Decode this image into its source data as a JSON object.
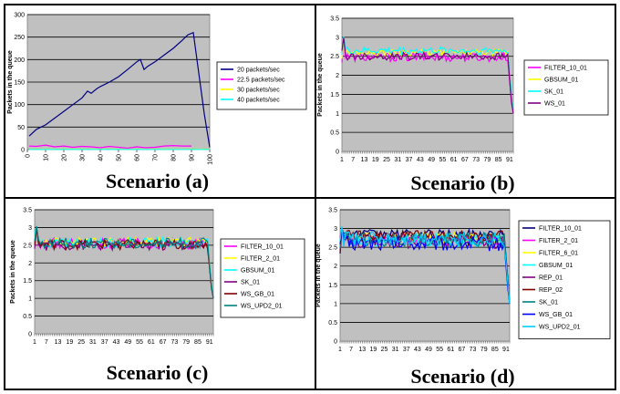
{
  "panels": [
    {
      "caption": "Scenario (a)",
      "chart": {
        "type": "line",
        "ylabel": "Packets in the queue",
        "ylim": [
          0,
          300
        ],
        "yticks": [
          0,
          50,
          100,
          150,
          200,
          250,
          300
        ],
        "xlim": [
          0,
          100
        ],
        "xticks": [
          0,
          10,
          20,
          30,
          40,
          50,
          60,
          70,
          80,
          90,
          100
        ],
        "grid": "horizontal",
        "legend": "right",
        "series": [
          {
            "name": "20 packets/sec",
            "color": "#000080",
            "x": [
              1,
              5,
              10,
              15,
              20,
              25,
              30,
              33,
              35,
              38,
              40,
              45,
              50,
              55,
              60,
              62,
              64,
              66,
              70,
              75,
              80,
              85,
              88,
              91,
              94,
              97,
              100
            ],
            "y": [
              30,
              45,
              55,
              70,
              85,
              100,
              115,
              130,
              125,
              135,
              140,
              150,
              162,
              178,
              195,
              200,
              178,
              185,
              195,
              210,
              225,
              243,
              255,
              260,
              170,
              80,
              5
            ]
          },
          {
            "name": "22.5 packets/sec",
            "color": "#FF00FF",
            "x": [
              1,
              5,
              10,
              15,
              20,
              25,
              30,
              35,
              40,
              45,
              50,
              55,
              60,
              65,
              70,
              75,
              80,
              85,
              90
            ],
            "y": [
              8,
              7,
              10,
              6,
              8,
              5,
              7,
              6,
              4,
              7,
              5,
              3,
              6,
              4,
              5,
              8,
              9,
              8,
              8
            ]
          },
          {
            "name": "30 packets/sec",
            "color": "#FFFF00",
            "x": [
              1,
              100
            ],
            "y": [
              1,
              1
            ]
          },
          {
            "name": "40 packets/sec",
            "color": "#00FFFF",
            "x": [
              1,
              100
            ],
            "y": [
              0.5,
              0.5
            ]
          }
        ]
      }
    },
    {
      "caption": "Scenario (b)",
      "chart": {
        "type": "line",
        "ylabel": "Packets in the queue",
        "ylim": [
          0,
          3.5
        ],
        "yticks": [
          "0",
          "0.5",
          "1",
          "1.5",
          "2",
          "2.5",
          "3",
          "3.5"
        ],
        "xticks": [
          "1",
          "7",
          "13",
          "19",
          "25",
          "31",
          "37",
          "43",
          "49",
          "55",
          "61",
          "67",
          "73",
          "79",
          "85",
          "91"
        ],
        "npoints": 93,
        "grid": "horizontal",
        "legend": "right",
        "series": [
          {
            "name": "FILTER_10_01",
            "color": "#FF00FF",
            "base": 2.48,
            "amp": 0.12
          },
          {
            "name": "GBSUM_01",
            "color": "#FFFF00",
            "base": 2.6,
            "amp": 0.08
          },
          {
            "name": "SK_01",
            "color": "#00FFFF",
            "base": 2.65,
            "amp": 0.1
          },
          {
            "name": "WS_01",
            "color": "#800080",
            "base": 2.5,
            "amp": 0.1
          }
        ]
      }
    },
    {
      "caption": "Scenario (c)",
      "chart": {
        "type": "line",
        "ylabel": "Packets in the queue",
        "ylim": [
          0,
          3.5
        ],
        "yticks": [
          "0",
          "0.5",
          "1",
          "1.5",
          "2",
          "2.5",
          "3",
          "3.5"
        ],
        "xticks": [
          "1",
          "7",
          "13",
          "19",
          "25",
          "31",
          "37",
          "43",
          "49",
          "55",
          "61",
          "67",
          "73",
          "79",
          "85",
          "91"
        ],
        "npoints": 93,
        "grid": "horizontal",
        "legend": "right",
        "series": [
          {
            "name": "FILTER_10_01",
            "color": "#FF00FF",
            "base": 2.55,
            "amp": 0.15
          },
          {
            "name": "FILTER_2_01",
            "color": "#FFFF00",
            "base": 2.6,
            "amp": 0.12
          },
          {
            "name": "GBSUM_01",
            "color": "#00FFFF",
            "base": 2.58,
            "amp": 0.14
          },
          {
            "name": "SK_01",
            "color": "#800080",
            "base": 2.5,
            "amp": 0.15
          },
          {
            "name": "WS_GB_01",
            "color": "#800000",
            "base": 2.52,
            "amp": 0.14
          },
          {
            "name": "WS_UPD2_01",
            "color": "#008080",
            "base": 2.56,
            "amp": 0.15
          }
        ]
      }
    },
    {
      "caption": "Scenario (d)",
      "chart": {
        "type": "line",
        "ylabel": "Packets in the queue",
        "ylim": [
          0,
          3.5
        ],
        "yticks": [
          "0",
          "0.5",
          "1",
          "1.5",
          "2",
          "2.5",
          "3",
          "3.5"
        ],
        "xticks": [
          "1",
          "7",
          "13",
          "19",
          "25",
          "31",
          "37",
          "43",
          "49",
          "55",
          "61",
          "67",
          "73",
          "79",
          "85",
          "91"
        ],
        "npoints": 93,
        "grid": "horizontal",
        "legend": "right",
        "series": [
          {
            "name": "FILTER_10_01",
            "color": "#000080",
            "base": 2.85,
            "amp": 0.12
          },
          {
            "name": "FILTER_2_01",
            "color": "#FF00FF",
            "base": 2.7,
            "amp": 0.15
          },
          {
            "name": "FILTER_6_01",
            "color": "#FFFF00",
            "base": 2.75,
            "amp": 0.15
          },
          {
            "name": "GBSUM_01",
            "color": "#00FFFF",
            "base": 2.7,
            "amp": 0.18
          },
          {
            "name": "REP_01",
            "color": "#800080",
            "base": 2.65,
            "amp": 0.18
          },
          {
            "name": "REP_02",
            "color": "#800000",
            "base": 2.8,
            "amp": 0.15
          },
          {
            "name": "SK_01",
            "color": "#008080",
            "base": 2.7,
            "amp": 0.18
          },
          {
            "name": "WS_GB_01",
            "color": "#0000FF",
            "base": 2.6,
            "amp": 0.2
          },
          {
            "name": "WS_UPD2_01",
            "color": "#00CCFF",
            "base": 2.72,
            "amp": 0.2
          }
        ]
      }
    }
  ]
}
